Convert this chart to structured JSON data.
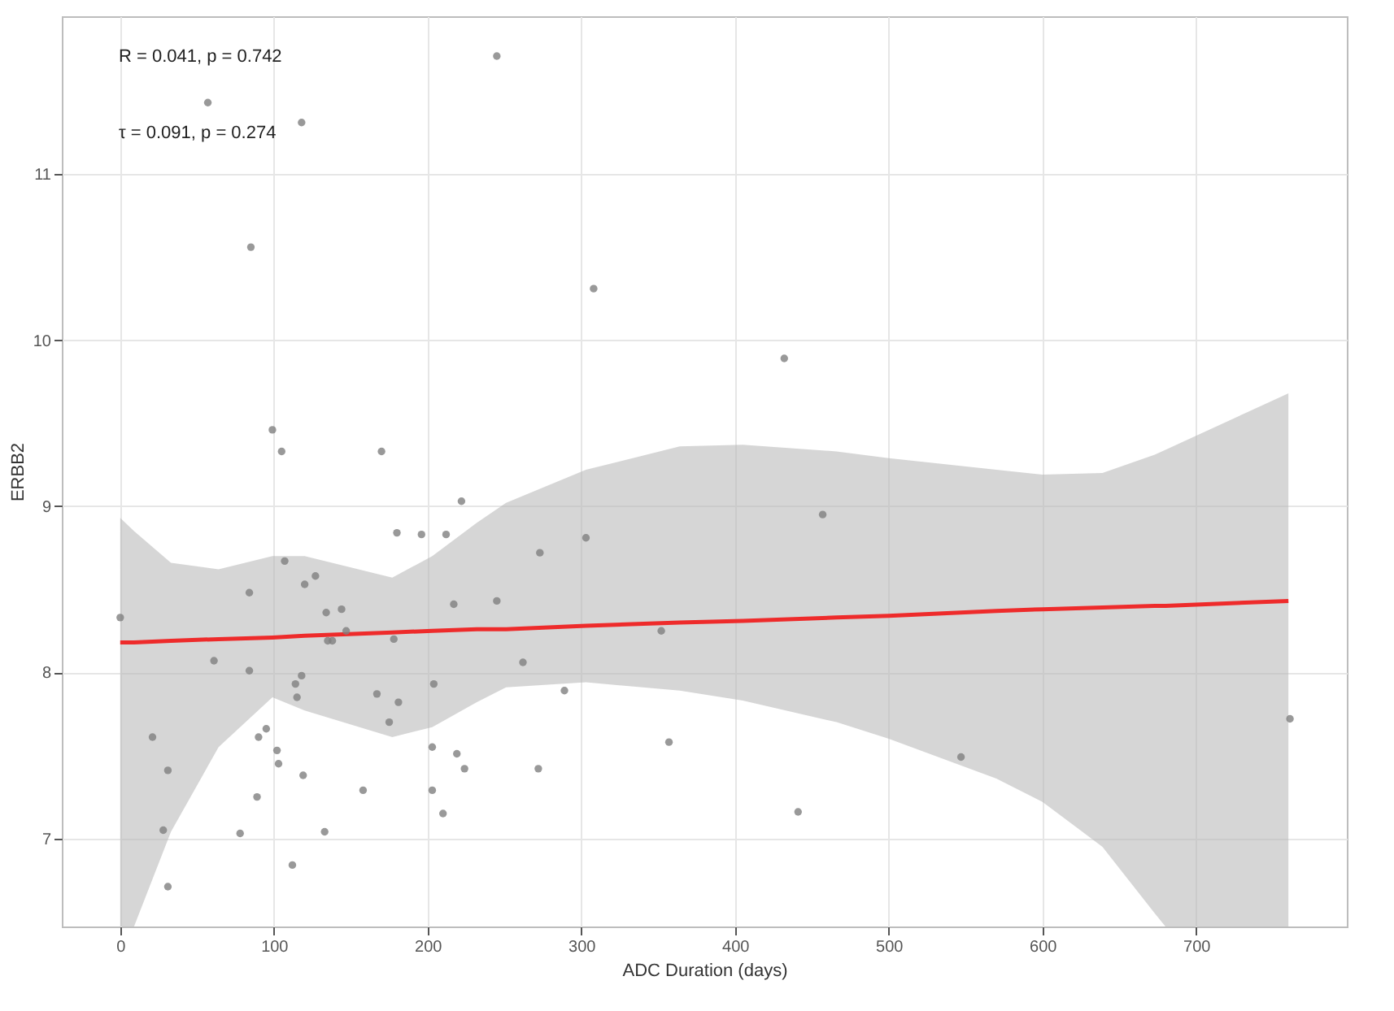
{
  "chart_data": {
    "type": "scatter",
    "xlabel": "ADC Duration (days)",
    "ylabel": "ERBB2",
    "annotations": [
      "R = 0.041, p = 0.742",
      "τ = 0.091, p = 0.274"
    ],
    "xlim": [
      -38,
      798
    ],
    "ylim": [
      6.47,
      11.95
    ],
    "xticks": [
      0,
      100,
      200,
      300,
      400,
      500,
      600,
      700
    ],
    "yticks": [
      7,
      8,
      9,
      10,
      11
    ],
    "grid": true,
    "series": [
      {
        "type": "line",
        "color": "#ee2b2b",
        "x": [
          0,
          9,
          33,
          64,
          99,
          120,
          177,
          203,
          232,
          251,
          303,
          364,
          405,
          466,
          500,
          570,
          600,
          639,
          673,
          680,
          760
        ],
        "values": [
          8.18,
          8.18,
          8.19,
          8.2,
          8.21,
          8.22,
          8.24,
          8.25,
          8.26,
          8.26,
          8.28,
          8.3,
          8.31,
          8.33,
          8.34,
          8.37,
          8.38,
          8.39,
          8.4,
          8.4,
          8.43
        ],
        "lower": [
          6.47,
          6.47,
          7.04,
          7.55,
          7.85,
          7.77,
          7.61,
          7.67,
          7.82,
          7.91,
          7.94,
          7.89,
          7.83,
          7.7,
          7.6,
          7.36,
          7.22,
          6.95,
          6.55,
          6.47,
          6.47
        ],
        "upper": [
          8.93,
          8.85,
          8.66,
          8.62,
          8.7,
          8.7,
          8.57,
          8.7,
          8.9,
          9.02,
          9.22,
          9.36,
          9.37,
          9.33,
          9.29,
          9.22,
          9.19,
          9.2,
          9.31,
          9.34,
          9.68
        ]
      },
      {
        "marker": "circle",
        "color": "#7f7f7f",
        "x": [
          57,
          118,
          245,
          85,
          308,
          99,
          105,
          170,
          432,
          0,
          222,
          180,
          196,
          212,
          303,
          273,
          107,
          127,
          120,
          84,
          245,
          217,
          144,
          134,
          147,
          352,
          135,
          138,
          178,
          61,
          262,
          84,
          118,
          114,
          204,
          289,
          167,
          115,
          181,
          175,
          95,
          21,
          90,
          357,
          102,
          203,
          219,
          103,
          31,
          224,
          272,
          119,
          158,
          203,
          89,
          210,
          28,
          78,
          133,
          112,
          31,
          457,
          547,
          441,
          761
        ],
        "values": [
          11.43,
          11.31,
          11.71,
          10.56,
          10.31,
          9.46,
          9.33,
          9.33,
          9.89,
          8.33,
          9.03,
          8.84,
          8.83,
          8.83,
          8.81,
          8.72,
          8.67,
          8.58,
          8.53,
          8.48,
          8.43,
          8.41,
          8.38,
          8.36,
          8.25,
          8.25,
          8.19,
          8.19,
          8.2,
          8.07,
          8.06,
          8.01,
          7.98,
          7.93,
          7.93,
          7.89,
          7.87,
          7.85,
          7.82,
          7.7,
          7.66,
          7.61,
          7.61,
          7.58,
          7.53,
          7.55,
          7.51,
          7.45,
          7.41,
          7.42,
          7.42,
          7.38,
          7.29,
          7.29,
          7.25,
          7.15,
          7.05,
          7.03,
          7.04,
          6.84,
          6.71,
          8.95,
          7.49,
          7.16,
          7.72
        ]
      }
    ]
  }
}
